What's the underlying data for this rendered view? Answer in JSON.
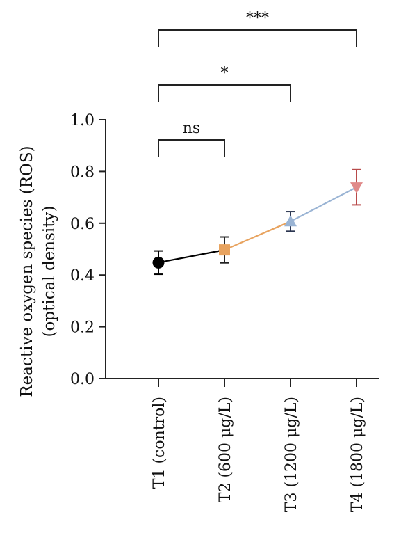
{
  "chart_data": {
    "type": "line",
    "categories": [
      "T1 (control)",
      "T2 (600 μg/L)",
      "T3 (1200 μg/L)",
      "T4 (1800 μg/L)"
    ],
    "values": [
      0.448,
      0.497,
      0.607,
      0.739
    ],
    "errors": [
      0.045,
      0.05,
      0.038,
      0.068
    ],
    "markers": [
      "circle",
      "square",
      "triangle-up",
      "triangle-down"
    ],
    "marker_colors": [
      "#000000",
      "#e8a35f",
      "#9ab4d4",
      "#e08a8a"
    ],
    "segment_colors": [
      "#000000",
      "#e8a35f",
      "#9ab4d4"
    ],
    "errorbar_colors": [
      "#000000",
      "#222222",
      "#2a3550",
      "#b84a4a"
    ],
    "ylabel_lines": [
      "Reactive oxygen species (ROS)",
      "(optical density)"
    ],
    "xlabel": "",
    "ylim": [
      0.0,
      1.0
    ],
    "yticks": [
      "0.0",
      "0.2",
      "0.4",
      "0.6",
      "0.8",
      "1.0"
    ],
    "grid": false,
    "significance": [
      {
        "from": 0,
        "to": 1,
        "label": "ns"
      },
      {
        "from": 0,
        "to": 2,
        "label": "*"
      },
      {
        "from": 0,
        "to": 3,
        "label": "***"
      }
    ]
  }
}
